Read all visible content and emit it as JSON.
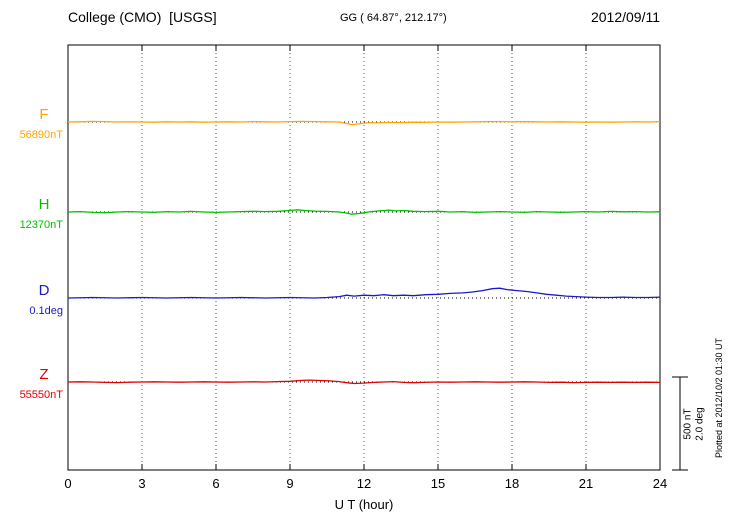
{
  "header": {
    "title": "College (CMO)  [USGS]",
    "coords": "GG ( 64.87°, 212.17°)",
    "date": "2012/09/11"
  },
  "footer_note": "Plotted at 2012/10/2 01:30 UT",
  "scale_bar": {
    "label_nt": "500 nT",
    "label_deg": "2.0 deg"
  },
  "chart_data": {
    "type": "line",
    "title": "College (CMO) [USGS] magnetogram 2012/09/11",
    "xlabel": "U T (hour)",
    "xlim": [
      0,
      24
    ],
    "x_ticks": [
      0,
      3,
      6,
      9,
      12,
      15,
      18,
      21,
      24
    ],
    "grid": "vertical dotted every 3 hours, dotted horizontal baseline per trace",
    "scale": {
      "nT_per_bar": 500,
      "deg_per_bar": 2.0
    },
    "series": [
      {
        "name": "F",
        "value_label": "56890nT",
        "units": "nT",
        "color": "#FFA500",
        "points": [
          [
            0,
            0
          ],
          [
            0.5,
            1
          ],
          [
            1,
            3
          ],
          [
            1.5,
            2
          ],
          [
            2,
            0
          ],
          [
            2.5,
            1
          ],
          [
            3,
            0
          ],
          [
            3.5,
            -1
          ],
          [
            4,
            1
          ],
          [
            4.5,
            0
          ],
          [
            5,
            1
          ],
          [
            5.5,
            -1
          ],
          [
            6,
            0
          ],
          [
            6.5,
            1
          ],
          [
            7,
            0
          ],
          [
            7.5,
            2
          ],
          [
            8,
            1
          ],
          [
            8.5,
            0
          ],
          [
            9,
            2
          ],
          [
            9.5,
            3
          ],
          [
            10,
            2
          ],
          [
            10.5,
            1
          ],
          [
            11,
            0
          ],
          [
            11.3,
            -8
          ],
          [
            11.5,
            -14
          ],
          [
            11.8,
            -10
          ],
          [
            12,
            -6
          ],
          [
            12.3,
            -3
          ],
          [
            12.5,
            -5
          ],
          [
            13,
            -2
          ],
          [
            13.5,
            -3
          ],
          [
            14,
            -1
          ],
          [
            14.5,
            -2
          ],
          [
            15,
            0
          ],
          [
            15.5,
            -1
          ],
          [
            16,
            0
          ],
          [
            16.5,
            1
          ],
          [
            17,
            2
          ],
          [
            17.5,
            2
          ],
          [
            18,
            1
          ],
          [
            18.5,
            2
          ],
          [
            19,
            1
          ],
          [
            19.5,
            0
          ],
          [
            20,
            1
          ],
          [
            20.5,
            0
          ],
          [
            21,
            -1
          ],
          [
            21.5,
            0
          ],
          [
            22,
            -1
          ],
          [
            22.5,
            0
          ],
          [
            23,
            1
          ],
          [
            23.5,
            0
          ],
          [
            24,
            2
          ]
        ]
      },
      {
        "name": "H",
        "value_label": "12370nT",
        "units": "nT",
        "color": "#00C000",
        "points": [
          [
            0,
            0
          ],
          [
            0.5,
            2
          ],
          [
            1,
            -2
          ],
          [
            1.5,
            -4
          ],
          [
            2,
            0
          ],
          [
            2.5,
            2
          ],
          [
            3,
            0
          ],
          [
            3.5,
            -2
          ],
          [
            4,
            2
          ],
          [
            4.5,
            0
          ],
          [
            5,
            3
          ],
          [
            5.5,
            0
          ],
          [
            6,
            -2
          ],
          [
            6.5,
            0
          ],
          [
            7,
            2
          ],
          [
            7.5,
            4
          ],
          [
            8,
            2
          ],
          [
            8.5,
            4
          ],
          [
            9,
            8
          ],
          [
            9.3,
            12
          ],
          [
            9.6,
            8
          ],
          [
            10,
            5
          ],
          [
            10.5,
            3
          ],
          [
            11,
            0
          ],
          [
            11.3,
            -6
          ],
          [
            11.5,
            -12
          ],
          [
            11.8,
            -8
          ],
          [
            12,
            -4
          ],
          [
            12.3,
            2
          ],
          [
            12.6,
            6
          ],
          [
            13,
            10
          ],
          [
            13.3,
            6
          ],
          [
            13.6,
            8
          ],
          [
            14,
            4
          ],
          [
            14.5,
            2
          ],
          [
            15,
            4
          ],
          [
            15.5,
            0
          ],
          [
            16,
            2
          ],
          [
            16.5,
            -2
          ],
          [
            17,
            0
          ],
          [
            17.5,
            2
          ],
          [
            18,
            0
          ],
          [
            18.5,
            -2
          ],
          [
            19,
            2
          ],
          [
            19.5,
            0
          ],
          [
            20,
            -2
          ],
          [
            20.5,
            0
          ],
          [
            21,
            2
          ],
          [
            21.5,
            0
          ],
          [
            22,
            3
          ],
          [
            22.5,
            1
          ],
          [
            23,
            2
          ],
          [
            23.5,
            0
          ],
          [
            24,
            1
          ]
        ]
      },
      {
        "name": "D",
        "value_label": "0.1deg",
        "units": "deg",
        "color": "#1a1acc",
        "points": [
          [
            0,
            0
          ],
          [
            1,
            0.01
          ],
          [
            2,
            0
          ],
          [
            3,
            0.01
          ],
          [
            4,
            0
          ],
          [
            5,
            0.01
          ],
          [
            6,
            0
          ],
          [
            7,
            0.01
          ],
          [
            8,
            0
          ],
          [
            9,
            0.01
          ],
          [
            10,
            0
          ],
          [
            10.5,
            0.01
          ],
          [
            11,
            0.03
          ],
          [
            11.3,
            0.06
          ],
          [
            11.6,
            0.04
          ],
          [
            12,
            0.06
          ],
          [
            12.4,
            0.05
          ],
          [
            12.8,
            0.07
          ],
          [
            13.2,
            0.05
          ],
          [
            13.6,
            0.06
          ],
          [
            14,
            0.05
          ],
          [
            14.5,
            0.07
          ],
          [
            15,
            0.08
          ],
          [
            15.5,
            0.1
          ],
          [
            16,
            0.11
          ],
          [
            16.4,
            0.13
          ],
          [
            16.8,
            0.16
          ],
          [
            17.2,
            0.2
          ],
          [
            17.5,
            0.21
          ],
          [
            17.8,
            0.18
          ],
          [
            18.2,
            0.16
          ],
          [
            18.6,
            0.14
          ],
          [
            19,
            0.11
          ],
          [
            19.4,
            0.08
          ],
          [
            19.8,
            0.06
          ],
          [
            20.2,
            0.04
          ],
          [
            20.6,
            0.03
          ],
          [
            21,
            0.02
          ],
          [
            21.5,
            0.01
          ],
          [
            22,
            0.01
          ],
          [
            22.5,
            0.02
          ],
          [
            23,
            0.01
          ],
          [
            23.5,
            0.01
          ],
          [
            24,
            0.02
          ]
        ]
      },
      {
        "name": "Z",
        "value_label": "55550nT",
        "units": "nT",
        "color": "#e00000",
        "points": [
          [
            0,
            0
          ],
          [
            0.5,
            1
          ],
          [
            1,
            0
          ],
          [
            1.5,
            -2
          ],
          [
            2,
            -3
          ],
          [
            2.5,
            -1
          ],
          [
            3,
            0
          ],
          [
            3.5,
            1
          ],
          [
            4,
            0
          ],
          [
            4.5,
            -1
          ],
          [
            5,
            0
          ],
          [
            5.5,
            1
          ],
          [
            6,
            0
          ],
          [
            6.5,
            -1
          ],
          [
            7,
            0
          ],
          [
            7.5,
            1
          ],
          [
            8,
            0
          ],
          [
            8.5,
            2
          ],
          [
            9,
            4
          ],
          [
            9.4,
            8
          ],
          [
            9.8,
            10
          ],
          [
            10.2,
            8
          ],
          [
            10.6,
            6
          ],
          [
            11,
            2
          ],
          [
            11.3,
            -4
          ],
          [
            11.6,
            -8
          ],
          [
            12,
            -6
          ],
          [
            12.4,
            -2
          ],
          [
            12.8,
            0
          ],
          [
            13.2,
            2
          ],
          [
            13.6,
            -2
          ],
          [
            14,
            -4
          ],
          [
            14.4,
            -2
          ],
          [
            15,
            0
          ],
          [
            15.5,
            -1
          ],
          [
            16,
            0
          ],
          [
            16.5,
            1
          ],
          [
            17,
            0
          ],
          [
            17.5,
            -1
          ],
          [
            18,
            0
          ],
          [
            18.5,
            1
          ],
          [
            19,
            0
          ],
          [
            19.5,
            -2
          ],
          [
            20,
            -1
          ],
          [
            20.5,
            -3
          ],
          [
            21,
            -2
          ],
          [
            21.5,
            -1
          ],
          [
            22,
            -2
          ],
          [
            22.5,
            -1
          ],
          [
            23,
            -2
          ],
          [
            23.5,
            -1
          ],
          [
            24,
            -2
          ]
        ]
      }
    ]
  }
}
